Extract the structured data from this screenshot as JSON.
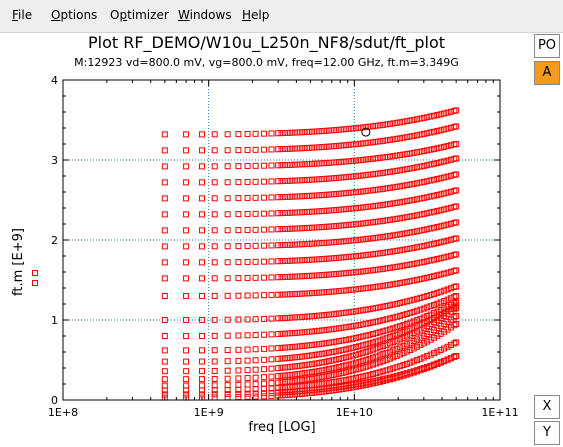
{
  "menu": {
    "file": {
      "first": "F",
      "rest": "ile"
    },
    "options": {
      "first": "O",
      "rest": "ptions"
    },
    "optimizer": {
      "pre": "O",
      "mid": "p",
      "rest": "timizer"
    },
    "windows": {
      "first": "W",
      "rest": "indows"
    },
    "help": {
      "first": "H",
      "rest": "elp"
    }
  },
  "plot": {
    "title": "Plot RF_DEMO/W10u_L250n_NF8/sdut/ft_plot",
    "subtitle": "M:12923 vd=800.0  mV, vg=800.0  mV, freq=12.00  GHz, ft.m=3.349G"
  },
  "side_buttons": {
    "po": "PO",
    "a": "A",
    "x": "X",
    "y": "Y"
  },
  "colors": {
    "marker": "#ff0000",
    "grid": "#1f77b4",
    "active_button": "#f59a1a"
  },
  "chart_data": {
    "type": "scatter",
    "xlabel": "freq  [LOG]",
    "ylabel": "ft.m  [E+9]",
    "x_scale": "log",
    "xlim": [
      100000000,
      100000000000
    ],
    "ylim": [
      0,
      4
    ],
    "x_ticks": [
      {
        "value": 100000000,
        "label": "1E+8"
      },
      {
        "value": 1000000000,
        "label": "1E+9"
      },
      {
        "value": 10000000000,
        "label": "1E+10"
      },
      {
        "value": 100000000000,
        "label": "1E+11"
      }
    ],
    "y_ticks": [
      {
        "value": 0,
        "label": "0"
      },
      {
        "value": 1,
        "label": "1"
      },
      {
        "value": 2,
        "label": "2"
      },
      {
        "value": 3,
        "label": "3"
      },
      {
        "value": 4,
        "label": "4"
      }
    ],
    "grid": "dotted",
    "marker": "square",
    "frequency_range_ghz": [
      0.5,
      50
    ],
    "low_freq_levels_e9": [
      3.32,
      3.12,
      2.92,
      2.72,
      2.52,
      2.32,
      2.12,
      1.92,
      1.72,
      1.52,
      1.3,
      1.0,
      0.8,
      0.62,
      0.48,
      0.36,
      0.26,
      0.18,
      0.12,
      0.07,
      0.03
    ],
    "high_freq_values_e9": [
      3.62,
      3.42,
      3.2,
      3.02,
      2.82,
      2.62,
      2.42,
      2.22,
      2.02,
      1.82,
      1.62,
      1.42,
      1.3,
      1.22,
      1.18,
      1.15,
      1.05,
      0.95,
      0.72,
      0.55
    ],
    "highlighted_point": {
      "freq_ghz": 12.0,
      "ft_e9": 3.349
    }
  }
}
